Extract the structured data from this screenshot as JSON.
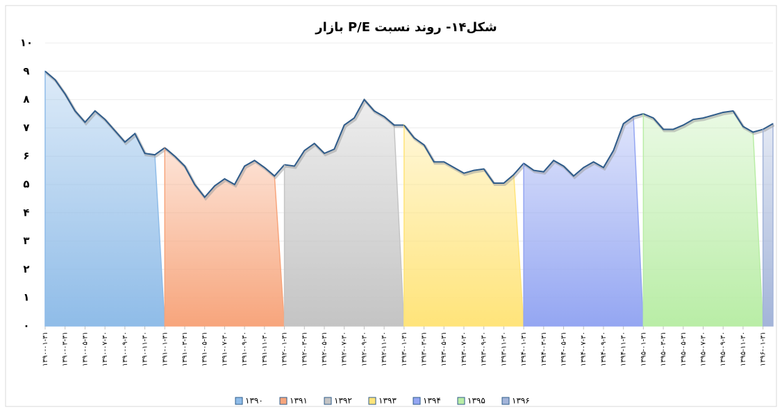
{
  "chart_data": {
    "type": "area",
    "title": "شکل۱۴- روند نسبت P/E بازار",
    "categories": [
      "۱۳۹۰-۰۱-۳۱",
      null,
      "۱۳۹۰-۰۳-۳۱",
      null,
      "۱۳۹۰-۰۵-۳۱",
      null,
      "۱۳۹۰-۰۷-۳۰",
      null,
      "۱۳۹۰-۰۹-۳۰",
      null,
      "۱۳۹۰-۱۱-۳۰",
      null,
      "۱۳۹۱-۰۱-۳۱",
      null,
      "۱۳۹۱-۰۳-۳۱",
      null,
      "۱۳۹۱-۰۵-۳۱",
      null,
      "۱۳۹۱-۰۷-۳۰",
      null,
      "۱۳۹۱-۰۹-۳۰",
      null,
      "۱۳۹۱-۱۱-۳۰",
      null,
      "۱۳۹۲-۰۱-۳۱",
      null,
      "۱۳۹۲-۰۳-۳۱",
      null,
      "۱۳۹۲-۰۵-۳۱",
      null,
      "۱۳۹۲-۰۷-۳۰",
      null,
      "۱۳۹۲-۰۹-۳۰",
      null,
      "۱۳۹۲-۱۱-۳۰",
      null,
      "۱۳۹۳-۰۱-۳۱",
      null,
      "۱۳۹۳-۰۳-۳۱",
      null,
      "۱۳۹۳-۰۵-۳۱",
      null,
      "۱۳۹۳-۰۷-۳۰",
      null,
      "۱۳۹۳-۰۹-۳۰",
      null,
      "۱۳۹۳-۱۱-۳۰",
      null,
      "۱۳۹۴-۰۱-۳۱",
      null,
      "۱۳۹۴-۰۳-۳۱",
      null,
      "۱۳۹۴-۰۵-۳۱",
      null,
      "۱۳۹۴-۰۷-۳۰",
      null,
      "۱۳۹۴-۰۹-۳۰",
      null,
      "۱۳۹۴-۱۱-۳۰",
      null,
      "۱۳۹۵-۰۱-۳۱",
      null,
      "۱۳۹۵-۰۳-۳۱",
      null,
      "۱۳۹۵-۰۵-۳۱",
      null,
      "۱۳۹۵-۰۷-۳۰",
      null,
      "۱۳۹۵-۰۹-۳۰",
      null,
      "۱۳۹۵-۱۱-۳۰",
      null,
      "۱۳۹۶-۰۱-۳۱",
      null
    ],
    "series": [
      {
        "name": "۱۳۹۰",
        "color": "#8fbce8",
        "values": [
          9.0,
          8.7,
          8.2,
          7.6,
          7.2,
          7.6,
          7.3,
          6.9,
          6.5,
          6.8,
          6.1,
          6.05,
          null,
          null,
          null,
          null,
          null,
          null,
          null,
          null,
          null,
          null,
          null,
          null,
          null,
          null,
          null,
          null,
          null,
          null,
          null,
          null,
          null,
          null,
          null,
          null,
          null,
          null,
          null,
          null,
          null,
          null,
          null,
          null,
          null,
          null,
          null,
          null,
          null,
          null,
          null,
          null,
          null,
          null,
          null,
          null,
          null,
          null,
          null,
          null,
          null,
          null,
          null,
          null,
          null,
          null,
          null,
          null,
          null,
          null,
          null,
          null,
          null,
          null
        ]
      },
      {
        "name": "۱۳۹۱",
        "color": "#f7a57c",
        "values": [
          null,
          null,
          null,
          null,
          null,
          null,
          null,
          null,
          null,
          null,
          null,
          null,
          6.3,
          6.0,
          5.65,
          5.0,
          4.55,
          4.95,
          5.2,
          5.0,
          5.65,
          5.85,
          5.6,
          5.3,
          null,
          null,
          null,
          null,
          null,
          null,
          null,
          null,
          null,
          null,
          null,
          null,
          null,
          null,
          null,
          null,
          null,
          null,
          null,
          null,
          null,
          null,
          null,
          null,
          null,
          null,
          null,
          null,
          null,
          null,
          null,
          null,
          null,
          null,
          null,
          null,
          null,
          null,
          null,
          null,
          null,
          null,
          null,
          null,
          null,
          null,
          null,
          null,
          null,
          null
        ]
      },
      {
        "name": "۱۳۹۲",
        "color": "#c4c4c4",
        "values": [
          null,
          null,
          null,
          null,
          null,
          null,
          null,
          null,
          null,
          null,
          null,
          null,
          null,
          null,
          null,
          null,
          null,
          null,
          null,
          null,
          null,
          null,
          null,
          null,
          5.7,
          5.65,
          6.2,
          6.45,
          6.1,
          6.25,
          7.1,
          7.35,
          8.0,
          7.6,
          7.4,
          7.1,
          null,
          null,
          null,
          null,
          null,
          null,
          null,
          null,
          null,
          null,
          null,
          null,
          null,
          null,
          null,
          null,
          null,
          null,
          null,
          null,
          null,
          null,
          null,
          null,
          null,
          null,
          null,
          null,
          null,
          null,
          null,
          null,
          null,
          null,
          null,
          null,
          null,
          null
        ]
      },
      {
        "name": "۱۳۹۳",
        "color": "#ffe47a",
        "values": [
          null,
          null,
          null,
          null,
          null,
          null,
          null,
          null,
          null,
          null,
          null,
          null,
          null,
          null,
          null,
          null,
          null,
          null,
          null,
          null,
          null,
          null,
          null,
          null,
          null,
          null,
          null,
          null,
          null,
          null,
          null,
          null,
          null,
          null,
          null,
          null,
          7.1,
          6.65,
          6.4,
          5.8,
          5.8,
          5.6,
          5.4,
          5.5,
          5.55,
          5.05,
          5.05,
          5.35,
          null,
          null,
          null,
          null,
          null,
          null,
          null,
          null,
          null,
          null,
          null,
          null,
          null,
          null,
          null,
          null,
          null,
          null,
          null,
          null,
          null,
          null,
          null,
          null,
          null,
          null
        ]
      },
      {
        "name": "۱۳۹۴",
        "color": "#94a6f2",
        "values": [
          null,
          null,
          null,
          null,
          null,
          null,
          null,
          null,
          null,
          null,
          null,
          null,
          null,
          null,
          null,
          null,
          null,
          null,
          null,
          null,
          null,
          null,
          null,
          null,
          null,
          null,
          null,
          null,
          null,
          null,
          null,
          null,
          null,
          null,
          null,
          null,
          null,
          null,
          null,
          null,
          null,
          null,
          null,
          null,
          null,
          null,
          null,
          null,
          5.75,
          5.5,
          5.45,
          5.85,
          5.65,
          5.3,
          5.6,
          5.8,
          5.6,
          6.2,
          7.15,
          7.4,
          null,
          null,
          null,
          null,
          null,
          null,
          null,
          null,
          null,
          null,
          null,
          null,
          null,
          null
        ]
      },
      {
        "name": "۱۳۹۵",
        "color": "#b9eda6",
        "values": [
          null,
          null,
          null,
          null,
          null,
          null,
          null,
          null,
          null,
          null,
          null,
          null,
          null,
          null,
          null,
          null,
          null,
          null,
          null,
          null,
          null,
          null,
          null,
          null,
          null,
          null,
          null,
          null,
          null,
          null,
          null,
          null,
          null,
          null,
          null,
          null,
          null,
          null,
          null,
          null,
          null,
          null,
          null,
          null,
          null,
          null,
          null,
          null,
          null,
          null,
          null,
          null,
          null,
          null,
          null,
          null,
          null,
          null,
          null,
          null,
          7.5,
          7.35,
          6.95,
          6.95,
          7.1,
          7.3,
          7.35,
          7.45,
          7.55,
          7.6,
          7.05,
          6.85,
          null,
          null
        ]
      },
      {
        "name": "۱۳۹۶",
        "color": "#a3b4d9",
        "values": [
          null,
          null,
          null,
          null,
          null,
          null,
          null,
          null,
          null,
          null,
          null,
          null,
          null,
          null,
          null,
          null,
          null,
          null,
          null,
          null,
          null,
          null,
          null,
          null,
          null,
          null,
          null,
          null,
          null,
          null,
          null,
          null,
          null,
          null,
          null,
          null,
          null,
          null,
          null,
          null,
          null,
          null,
          null,
          null,
          null,
          null,
          null,
          null,
          null,
          null,
          null,
          null,
          null,
          null,
          null,
          null,
          null,
          null,
          null,
          null,
          null,
          null,
          null,
          null,
          null,
          null,
          null,
          null,
          null,
          null,
          null,
          null,
          6.95,
          7.15
        ]
      }
    ],
    "line_color": "#2e5b8a",
    "ylim": [
      0,
      10
    ],
    "yticks": [
      {
        "value": 0,
        "label": "۰"
      },
      {
        "value": 1,
        "label": "۱"
      },
      {
        "value": 2,
        "label": "۲"
      },
      {
        "value": 3,
        "label": "۳"
      },
      {
        "value": 4,
        "label": "۴"
      },
      {
        "value": 5,
        "label": "۵"
      },
      {
        "value": 6,
        "label": "۶"
      },
      {
        "value": 7,
        "label": "۷"
      },
      {
        "value": 8,
        "label": "۸"
      },
      {
        "value": 9,
        "label": "۹"
      },
      {
        "value": 10,
        "label": "۱۰"
      }
    ],
    "grid": true,
    "legend": "bottom"
  }
}
